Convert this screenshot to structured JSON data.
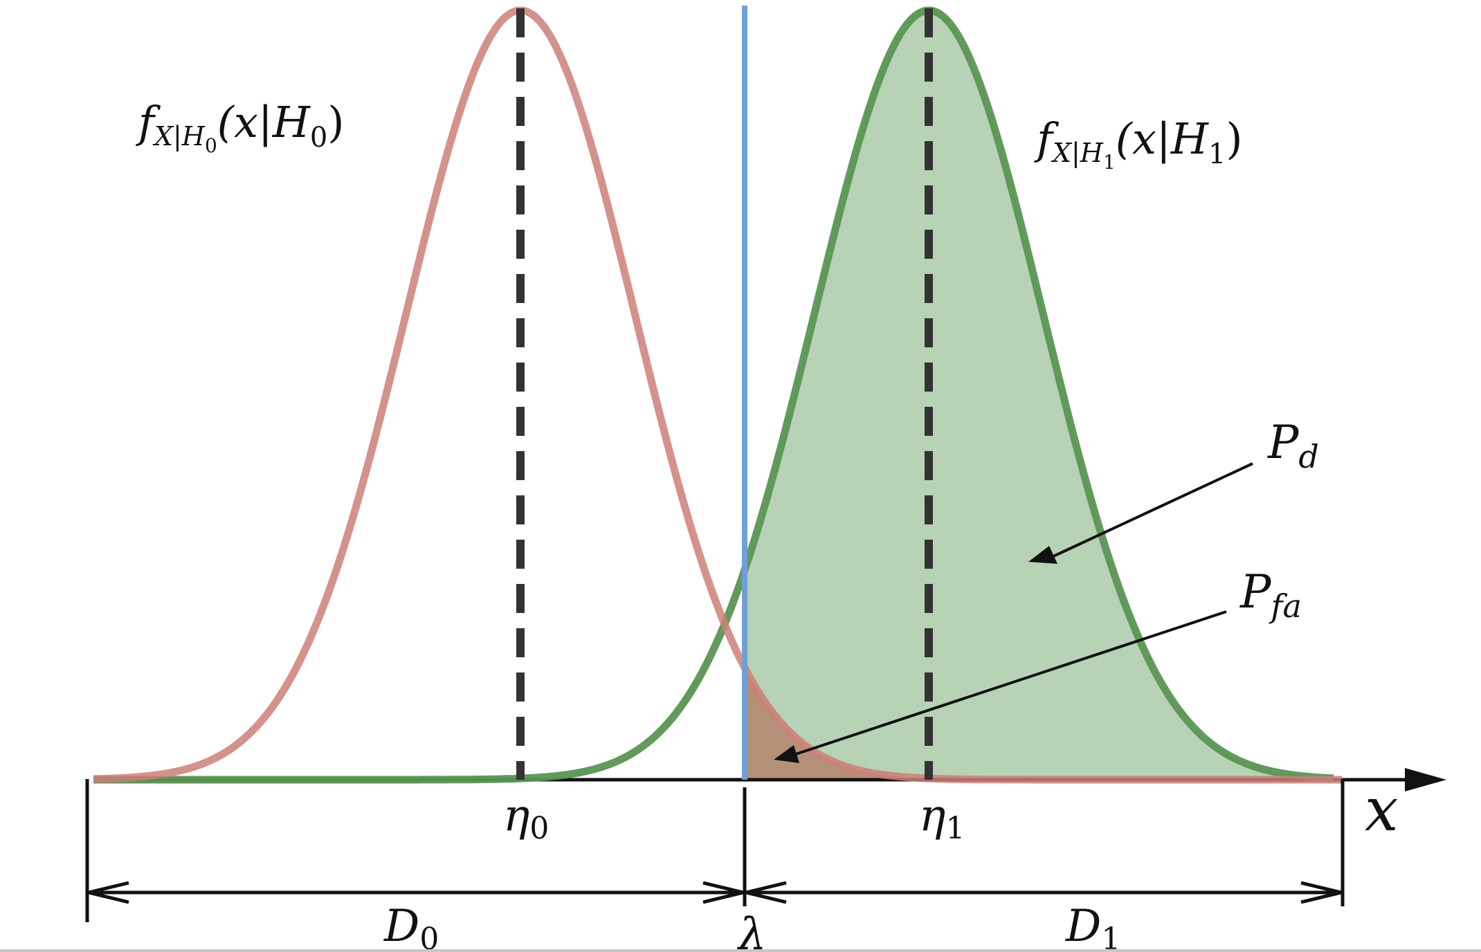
{
  "labels": {
    "pdf_h0": {
      "f": "f",
      "sub": "X|H",
      "subsub": "0",
      "args_open": "(x|H",
      "args_sub": "0",
      "args_close": ")"
    },
    "pdf_h1": {
      "f": "f",
      "sub": "X|H",
      "subsub": "1",
      "args_open": "(x|H",
      "args_sub": "1",
      "args_close": ")"
    },
    "pd": {
      "base": "P",
      "sub": "d"
    },
    "pfa": {
      "base": "P",
      "sub": "fa"
    },
    "eta0": {
      "base": "η",
      "sub": "0"
    },
    "eta1": {
      "base": "η",
      "sub": "1"
    },
    "x_axis": "x",
    "d0": {
      "base": "D",
      "sub": "0"
    },
    "d1": {
      "base": "D",
      "sub": "1"
    },
    "lambda": "λ"
  },
  "colors": {
    "h0_curve": "#cd7f78",
    "h1_curve": "#5a9553",
    "h1_fill": "#b7d2b4",
    "pfa_fill": "#b49078",
    "threshold": "#6f9fd6",
    "axis": "#111111",
    "mean_line": "#333333"
  }
}
